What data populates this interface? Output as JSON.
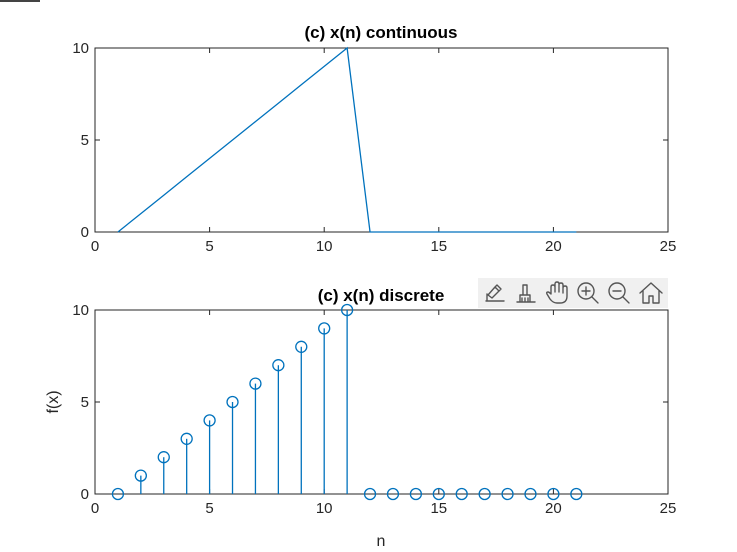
{
  "chart_data": [
    {
      "type": "line",
      "title": "(c) x(n) continuous",
      "xlabel": "",
      "ylabel": "",
      "xlim": [
        0,
        25
      ],
      "ylim": [
        0,
        10
      ],
      "xticks": [
        0,
        5,
        10,
        15,
        20,
        25
      ],
      "yticks": [
        0,
        5,
        10
      ],
      "grid": false,
      "color": "#0072BD",
      "x": [
        1,
        2,
        3,
        4,
        5,
        6,
        7,
        8,
        9,
        10,
        11,
        12,
        13,
        14,
        15,
        16,
        17,
        18,
        19,
        20,
        21
      ],
      "y": [
        0,
        1,
        2,
        3,
        4,
        5,
        6,
        7,
        8,
        9,
        10,
        0,
        0,
        0,
        0,
        0,
        0,
        0,
        0,
        0,
        0
      ]
    },
    {
      "type": "stem",
      "title": "(c) x(n) discrete",
      "xlabel": "n",
      "ylabel": "f(x)",
      "xlim": [
        0,
        25
      ],
      "ylim": [
        0,
        10
      ],
      "xticks": [
        0,
        5,
        10,
        15,
        20,
        25
      ],
      "yticks": [
        0,
        5,
        10
      ],
      "grid": false,
      "color": "#0072BD",
      "x": [
        1,
        2,
        3,
        4,
        5,
        6,
        7,
        8,
        9,
        10,
        11,
        12,
        13,
        14,
        15,
        16,
        17,
        18,
        19,
        20,
        21
      ],
      "y": [
        0,
        1,
        2,
        3,
        4,
        5,
        6,
        7,
        8,
        9,
        10,
        0,
        0,
        0,
        0,
        0,
        0,
        0,
        0,
        0,
        0
      ]
    }
  ],
  "toolbar": {
    "icons": [
      "export-icon",
      "brush-icon",
      "pan-icon",
      "zoom-in-icon",
      "zoom-out-icon",
      "home-icon"
    ]
  }
}
